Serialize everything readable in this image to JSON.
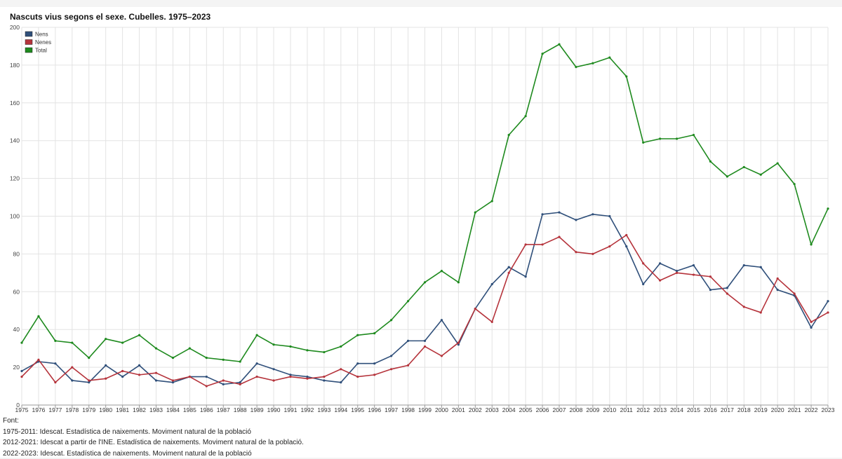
{
  "chart_data": {
    "type": "line",
    "title": "Nascuts vius segons el sexe. Cubelles. 1975–2023",
    "xlabel": "",
    "ylabel": "",
    "ylim": [
      0,
      200
    ],
    "yticks": [
      0,
      20,
      40,
      60,
      80,
      100,
      120,
      140,
      160,
      180,
      200
    ],
    "grid": true,
    "legend_position": "top-left",
    "x": [
      "1975",
      "1976",
      "1977",
      "1978",
      "1979",
      "1980",
      "1981",
      "1982",
      "1983",
      "1984",
      "1985",
      "1986",
      "1987",
      "1988",
      "1989",
      "1990",
      "1991",
      "1992",
      "1993",
      "1994",
      "1995",
      "1996",
      "1997",
      "1998",
      "1999",
      "2000",
      "2001",
      "2002",
      "2003",
      "2004",
      "2005",
      "2006",
      "2007",
      "2008",
      "2009",
      "2010",
      "2011",
      "2012",
      "2013",
      "2014",
      "2015",
      "2016",
      "2017",
      "2018",
      "2019",
      "2020",
      "2021",
      "2022",
      "2023"
    ],
    "series": [
      {
        "name": "Nens",
        "color": "#2f4f7a",
        "values": [
          18,
          23,
          22,
          13,
          12,
          21,
          15,
          21,
          13,
          12,
          15,
          15,
          11,
          12,
          22,
          19,
          16,
          15,
          13,
          12,
          22,
          22,
          26,
          34,
          34,
          45,
          32,
          51,
          64,
          73,
          68,
          101,
          102,
          98,
          101,
          100,
          84,
          64,
          75,
          71,
          74,
          61,
          62,
          74,
          73,
          61,
          58,
          41,
          55
        ]
      },
      {
        "name": "Nenes",
        "color": "#b5333b",
        "values": [
          15,
          24,
          12,
          20,
          13,
          14,
          18,
          16,
          17,
          13,
          15,
          10,
          13,
          11,
          15,
          13,
          15,
          14,
          15,
          19,
          15,
          16,
          19,
          21,
          31,
          26,
          33,
          51,
          44,
          70,
          85,
          85,
          89,
          81,
          80,
          84,
          90,
          75,
          66,
          70,
          69,
          68,
          59,
          52,
          49,
          67,
          59,
          44,
          49
        ]
      },
      {
        "name": "Total",
        "color": "#1e8a1e",
        "values": [
          33,
          47,
          34,
          33,
          25,
          35,
          33,
          37,
          30,
          25,
          30,
          25,
          24,
          23,
          37,
          32,
          31,
          29,
          28,
          31,
          37,
          38,
          45,
          55,
          65,
          71,
          65,
          102,
          108,
          143,
          153,
          186,
          191,
          179,
          181,
          184,
          174,
          139,
          141,
          141,
          143,
          129,
          121,
          126,
          122,
          128,
          117,
          85,
          104
        ]
      }
    ]
  },
  "sources": {
    "heading": "Font:",
    "lines": [
      "1975-2011: Idescat. Estadística de naixements. Moviment natural de la població",
      "2012-2021: Idescat a partir de l'INE. Estadística de naixements. Moviment natural de la població.",
      "2022-2023: Idescat. Estadística de naixements. Moviment natural de la població"
    ]
  }
}
